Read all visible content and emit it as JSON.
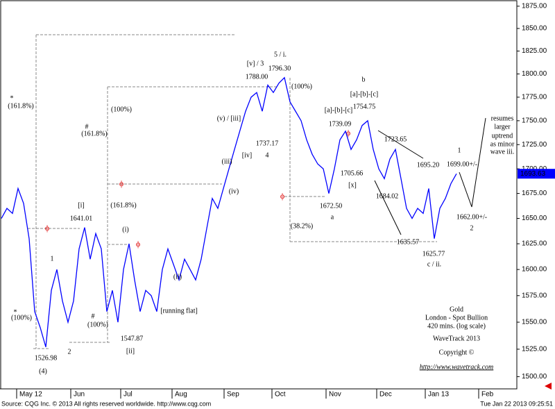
{
  "chart_data": {
    "type": "line",
    "log_scale": true,
    "series": [
      {
        "name": "Gold",
        "color": "#0000ff",
        "values": [
          1650,
          1660,
          1655,
          1680,
          1665,
          1630,
          1560,
          1545,
          1527,
          1580,
          1600,
          1570,
          1550,
          1570,
          1620,
          1641,
          1610,
          1635,
          1620,
          1560,
          1580,
          1550,
          1600,
          1625,
          1590,
          1560,
          1580,
          1575,
          1560,
          1600,
          1620,
          1605,
          1590,
          1610,
          1600,
          1590,
          1610,
          1640,
          1670,
          1660,
          1680,
          1700,
          1720,
          1740,
          1760,
          1775,
          1780,
          1760,
          1788,
          1780,
          1790,
          1796,
          1770,
          1760,
          1750,
          1730,
          1715,
          1705,
          1700,
          1675,
          1700,
          1730,
          1739,
          1720,
          1730,
          1745,
          1750,
          1720,
          1700,
          1690,
          1710,
          1720,
          1690,
          1660,
          1650,
          1660,
          1655,
          1680,
          1630,
          1660,
          1670,
          1685,
          1695
        ]
      }
    ],
    "last_price_label": "1693.63",
    "xlim": [
      -0.25,
      92.875
    ],
    "xticks": [
      {
        "value": 2.75,
        "label": "May 12"
      },
      {
        "value": 12.5,
        "label": "Jun"
      },
      {
        "value": 21.5,
        "label": "Jul"
      },
      {
        "value": 30.75,
        "label": "Aug"
      },
      {
        "value": 40.125,
        "label": "Sep"
      },
      {
        "value": 48.75,
        "label": "Oct"
      },
      {
        "value": 58.5,
        "label": "Nov"
      },
      {
        "value": 67.625,
        "label": "Dec"
      },
      {
        "value": 76.375,
        "label": "Jan 13"
      },
      {
        "value": 86,
        "label": "Feb"
      }
    ],
    "ylim": [
      1489,
      1882
    ],
    "yticks": [
      {
        "value": 1500,
        "label": "1500.00"
      },
      {
        "value": 1525,
        "label": "1525.00"
      },
      {
        "value": 1550,
        "label": "1550.00"
      },
      {
        "value": 1575,
        "label": "1575.00"
      },
      {
        "value": 1600,
        "label": "1600.00"
      },
      {
        "value": 1625,
        "label": "1625.00"
      },
      {
        "value": 1650,
        "label": "1650.00"
      },
      {
        "value": 1675,
        "label": "1675.00"
      },
      {
        "value": 1700,
        "label": "1700.00"
      },
      {
        "value": 1725,
        "label": "1725.00"
      },
      {
        "value": 1750,
        "label": "1750.00"
      },
      {
        "value": 1775,
        "label": "1775.00"
      },
      {
        "value": 1800,
        "label": "1800.00"
      },
      {
        "value": 1825,
        "label": "1825.00"
      },
      {
        "value": 1850,
        "label": "1850.00"
      },
      {
        "value": 1875,
        "label": "1875.00"
      }
    ],
    "annotations": [
      "1526.98",
      "(4)",
      "2",
      "1",
      "[i]",
      "1641.01",
      "(i)",
      "1547.87",
      "[ii]",
      "(ii)",
      "[running flat]",
      "(iii)",
      "(iv)",
      "(v) / [iii]",
      "[iv]",
      "1737.17",
      "4",
      "[v] / 3",
      "1788.00",
      "5 / i.",
      "1796.30",
      "(100%)",
      "b",
      "[a]-[b]-[c]",
      "1754.75",
      "[a]-[b]-[c]",
      "1739.09",
      "1705.66",
      "[x]",
      "1672.50",
      "a",
      "(38.2%)",
      "1723.65",
      "1684.02",
      "1695.20",
      "1",
      "1699.00+/-",
      "resumes",
      "larger",
      "uptrend",
      "as minor",
      "wave iii.",
      "1662.00+/-",
      "2",
      "1635.57",
      "1625.77",
      "c / ii.",
      "*",
      "(161.8%)",
      "#",
      "(161.8%)",
      "(100%)",
      "(161.8%)",
      "*",
      "(100%)",
      "#",
      "(100%)"
    ],
    "info": [
      "Gold",
      "London - Spot Bullion",
      "420 mins. (log scale)",
      "WaveTrack 2013",
      "Copyright ©",
      "http://www.wavetrack.com"
    ],
    "source": "Source: CQG Inc. © 2013 All rights reserved worldwide. http://www.cqg.com",
    "timestamp": "Tue Jan 22 2013 09:25:51"
  }
}
